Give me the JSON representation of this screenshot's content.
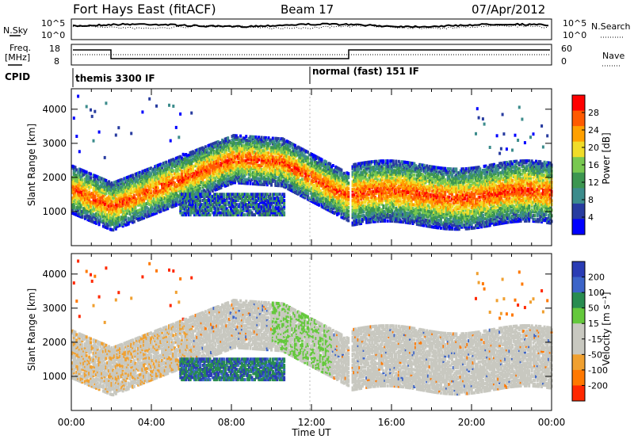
{
  "header": {
    "title": "Fort Hays East (fitACF)",
    "beam": "Beam 17",
    "date": "07/Apr/2012"
  },
  "nsky_panel": {
    "left_label": "N.Sky",
    "left_ticks": [
      "10^5",
      "10^0"
    ],
    "right_label": "N.Search",
    "right_ticks": [
      "10^5",
      "10^0"
    ]
  },
  "freq_panel": {
    "left_label_1": "Freq.",
    "left_label_2": "[MHz]",
    "left_ticks": [
      "18",
      "8"
    ],
    "right_label": "Nave",
    "right_ticks": [
      "60",
      "0"
    ],
    "cpid_label": "CPID",
    "cpid_1": "themis 3300 IF",
    "cpid_2": "normal (fast) 151 IF"
  },
  "time_axis": {
    "label": "Time UT",
    "ticks": [
      "00:00",
      "04:00",
      "08:00",
      "12:00",
      "16:00",
      "20:00",
      "00:00"
    ]
  },
  "chart_data": [
    {
      "type": "heatmap",
      "parameter": "power",
      "ylabel": "Slant Range [km]",
      "xlim": [
        0,
        24
      ],
      "ylim": [
        0,
        4600
      ],
      "y_ticks": [
        "1000",
        "2000",
        "3000",
        "4000"
      ],
      "colorbar": {
        "label": "Power [dB]",
        "ticks": [
          "28",
          "24",
          "20",
          "16",
          "12",
          "8",
          "4"
        ],
        "colors": [
          "#ff0000",
          "#ff5a00",
          "#ffa000",
          "#f0dc28",
          "#78c850",
          "#3c9650",
          "#3c8c8c",
          "#283ca0",
          "#0000ff"
        ]
      }
    },
    {
      "type": "heatmap",
      "parameter": "velocity",
      "ylabel": "Slant Range [km]",
      "xlim": [
        0,
        24
      ],
      "ylim": [
        0,
        4600
      ],
      "y_ticks": [
        "1000",
        "2000",
        "3000",
        "4000"
      ],
      "colorbar": {
        "label": "Velocity [m s⁻¹]",
        "ticks": [
          "200",
          "100",
          "50",
          "15",
          "-15",
          "-50",
          "-100",
          "-200"
        ],
        "colors": [
          "#2a3cb4",
          "#3c64c8",
          "#288c50",
          "#64c83c",
          "#c8c8c0",
          "#c8c8c0",
          "#f0a030",
          "#ff7800",
          "#ff2800"
        ]
      }
    }
  ]
}
